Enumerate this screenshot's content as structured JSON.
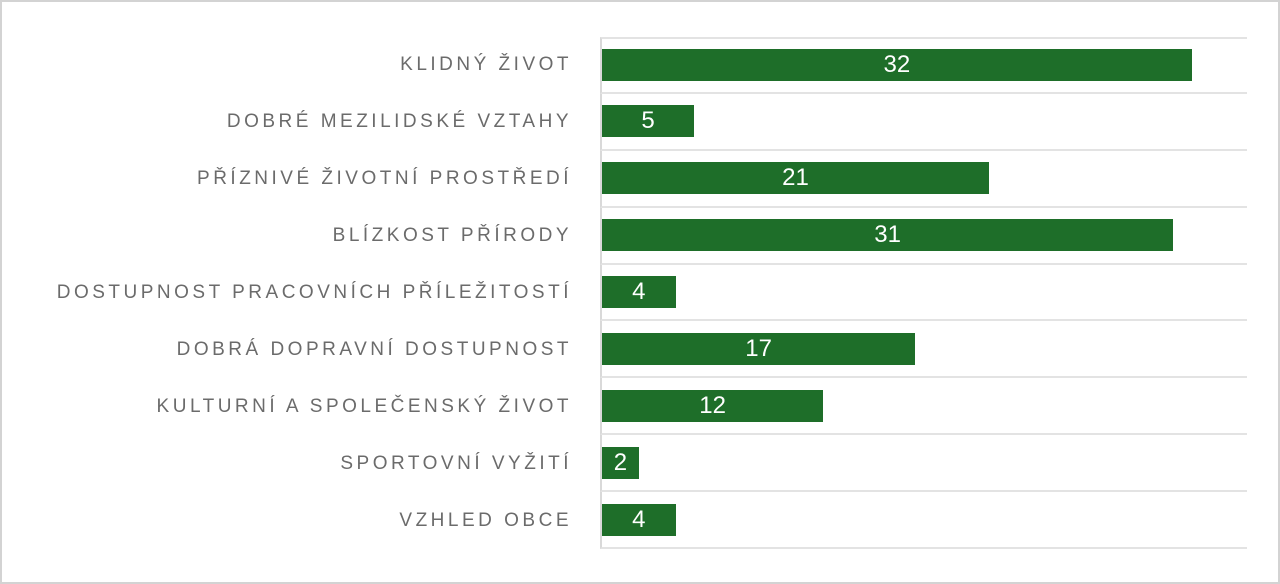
{
  "chart_data": {
    "type": "bar",
    "orientation": "horizontal",
    "title": "",
    "xlabel": "",
    "ylabel": "",
    "categories": [
      "KLIDNÝ ŽIVOT",
      "DOBRÉ MEZILIDSKÉ VZTAHY",
      "PŘÍZNIVÉ ŽIVOTNÍ PROSTŘEDÍ",
      "BLÍZKOST PŘÍRODY",
      "DOSTUPNOST PRACOVNÍCH PŘÍLEŽITOSTÍ",
      "DOBRÁ DOPRAVNÍ DOSTUPNOST",
      "KULTURNÍ A SPOLEČENSKÝ ŽIVOT",
      "SPORTOVNÍ VYŽITÍ",
      "VZHLED OBCE"
    ],
    "values": [
      32,
      5,
      21,
      31,
      4,
      17,
      12,
      2,
      4
    ],
    "data_labels": [
      "32",
      "5",
      "21",
      "31",
      "4",
      "17",
      "12",
      "2",
      "4"
    ],
    "xlim": [
      0,
      35
    ],
    "grid": true,
    "legend": false,
    "colors": {
      "bar": "#1e6e29",
      "value_label": "#ffffff",
      "category_label": "#6b6b6b",
      "gridline": "#e3e3e3",
      "axis_line": "#d9d9d9",
      "frame_border": "#d3d3d3",
      "background": "#ffffff"
    }
  }
}
